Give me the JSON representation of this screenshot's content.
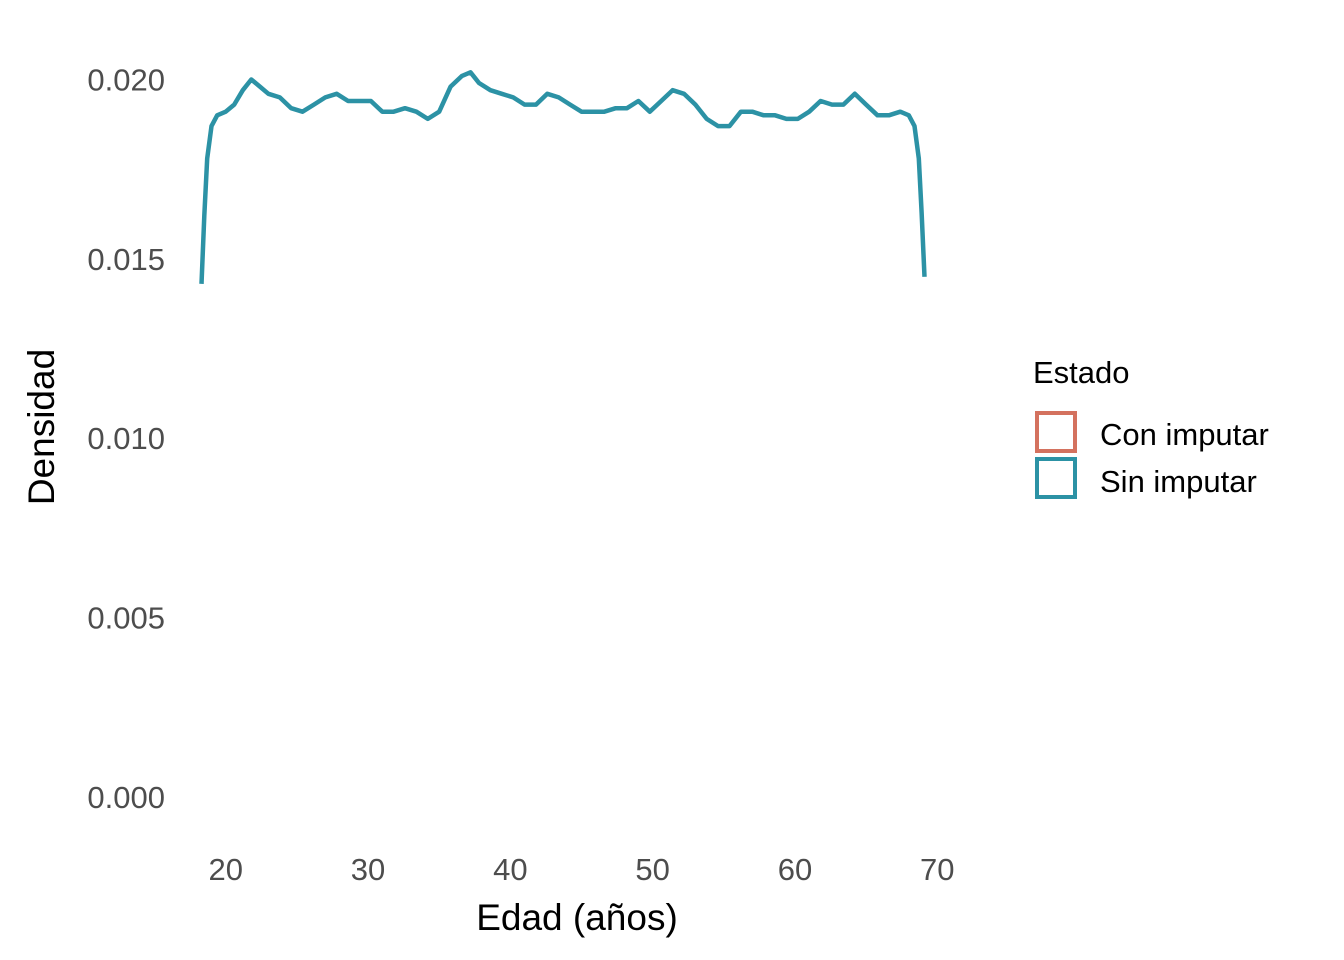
{
  "chart_data": {
    "type": "line",
    "title": "",
    "xlabel": "Edad (años)",
    "ylabel": "Densidad",
    "xlim": [
      17,
      73
    ],
    "ylim": [
      -0.0012,
      0.0211
    ],
    "x_ticks": [
      20,
      30,
      40,
      50,
      60,
      70
    ],
    "x_tick_labels": [
      "20",
      "30",
      "40",
      "50",
      "60",
      "70"
    ],
    "y_ticks": [
      0.0,
      0.005,
      0.01,
      0.015,
      0.02
    ],
    "y_tick_labels": [
      "0.000",
      "0.005",
      "0.010",
      "0.015",
      "0.020"
    ],
    "grid": false,
    "legend": {
      "title": "Estado",
      "position": "right",
      "entries": [
        {
          "label": "Con imputar",
          "color": "#d4725f"
        },
        {
          "label": "Sin imputar",
          "color": "#2c92a5"
        }
      ]
    },
    "series": [
      {
        "name": "Sin imputar",
        "color": "#2c92a5",
        "x": [
          18.3,
          18.5,
          18.7,
          19.0,
          19.4,
          20.0,
          20.6,
          21.2,
          21.8,
          22.4,
          23.0,
          23.8,
          24.6,
          25.4,
          26.2,
          27.0,
          27.8,
          28.6,
          29.4,
          30.2,
          31.0,
          31.8,
          32.6,
          33.4,
          34.2,
          35.0,
          35.8,
          36.6,
          37.2,
          37.8,
          38.6,
          39.4,
          40.2,
          41.0,
          41.8,
          42.6,
          43.4,
          44.2,
          45.0,
          45.8,
          46.6,
          47.4,
          48.2,
          49.0,
          49.8,
          50.6,
          51.4,
          52.2,
          53.0,
          53.8,
          54.6,
          55.4,
          56.2,
          57.0,
          57.8,
          58.6,
          59.4,
          60.2,
          61.0,
          61.8,
          62.6,
          63.4,
          64.2,
          65.0,
          65.8,
          66.6,
          67.4,
          68.0,
          68.4,
          68.7,
          68.9,
          69.1
        ],
        "y": [
          0.0143,
          0.0162,
          0.0178,
          0.0187,
          0.019,
          0.0191,
          0.0193,
          0.0197,
          0.02,
          0.0198,
          0.0196,
          0.0195,
          0.0192,
          0.0191,
          0.0193,
          0.0195,
          0.0196,
          0.0194,
          0.0194,
          0.0194,
          0.0191,
          0.0191,
          0.0192,
          0.0191,
          0.0189,
          0.0191,
          0.0198,
          0.0201,
          0.0202,
          0.0199,
          0.0197,
          0.0196,
          0.0195,
          0.0193,
          0.0193,
          0.0196,
          0.0195,
          0.0193,
          0.0191,
          0.0191,
          0.0191,
          0.0192,
          0.0192,
          0.0194,
          0.0191,
          0.0194,
          0.0197,
          0.0196,
          0.0193,
          0.0189,
          0.0187,
          0.0187,
          0.0191,
          0.0191,
          0.019,
          0.019,
          0.0189,
          0.0189,
          0.0191,
          0.0194,
          0.0193,
          0.0193,
          0.0196,
          0.0193,
          0.019,
          0.019,
          0.0191,
          0.019,
          0.0187,
          0.0178,
          0.0163,
          0.0145
        ]
      }
    ]
  }
}
